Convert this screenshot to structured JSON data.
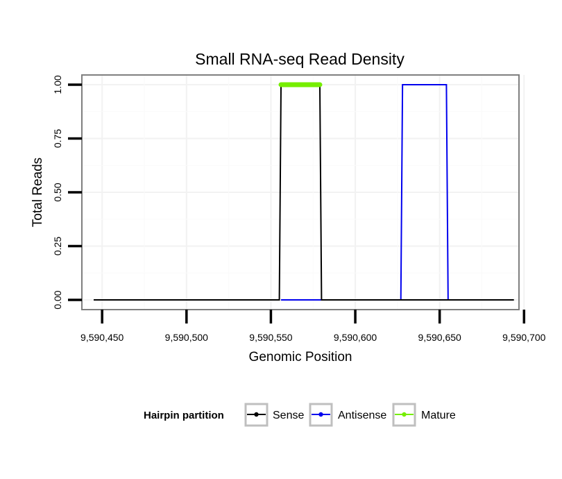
{
  "chart_data": {
    "type": "line",
    "title": "Small RNA-seq Read Density",
    "xlabel": "Genomic Position",
    "ylabel": "Total Reads",
    "xlim": [
      9590438,
      9590697
    ],
    "ylim": [
      -0.045,
      1.045
    ],
    "x_ticks": [
      9590450,
      9590500,
      9590550,
      9590600,
      9590650,
      9590700
    ],
    "x_tick_labels": [
      "9,590,450",
      "9,590,500",
      "9,590,550",
      "9,590,600",
      "9,590,650",
      "9,590,700"
    ],
    "y_ticks": [
      0,
      0.25,
      0.5,
      0.75,
      1.0
    ],
    "y_tick_labels": [
      "0.00",
      "0.25",
      "0.50",
      "0.75",
      "1.00"
    ],
    "grid": true,
    "legend": {
      "title": "Hairpin partition",
      "position": "bottom"
    },
    "series": [
      {
        "name": "Antisense",
        "color": "#0000ee",
        "style": "line",
        "x": [
          9590556,
          9590580,
          9590627,
          9590628,
          9590654,
          9590655,
          9590681
        ],
        "y": [
          0,
          0,
          0,
          1,
          1,
          0,
          0
        ]
      },
      {
        "name": "Sense",
        "color": "#000000",
        "style": "line",
        "x": [
          9590445,
          9590555,
          9590556,
          9590579,
          9590580,
          9590694
        ],
        "y": [
          0,
          0,
          1,
          1,
          0,
          0
        ]
      },
      {
        "name": "Mature",
        "color": "#76ee00",
        "style": "thick",
        "x": [
          9590556,
          9590579
        ],
        "y": [
          1,
          1
        ]
      }
    ]
  }
}
